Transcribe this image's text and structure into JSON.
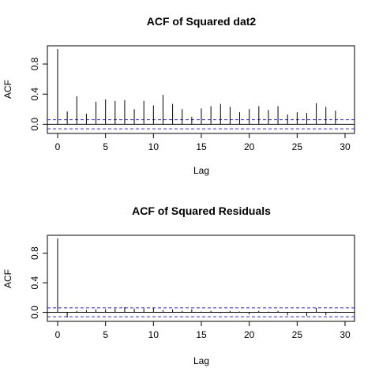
{
  "chart_data": [
    {
      "type": "bar",
      "title": "ACF of Squared dat2",
      "xlabel": "Lag",
      "ylabel": "ACF",
      "xlim": [
        0,
        30
      ],
      "ylim": [
        -0.08,
        1.0
      ],
      "x_ticks": [
        "0",
        "5",
        "10",
        "15",
        "20",
        "25",
        "30"
      ],
      "y_ticks": [
        "0.0",
        "0.4",
        "0.8"
      ],
      "confidence_band": 0.06,
      "band_color": "#2a2ad8",
      "lags": [
        0,
        1,
        2,
        3,
        4,
        5,
        6,
        7,
        8,
        9,
        10,
        11,
        12,
        13,
        14,
        15,
        16,
        17,
        18,
        19,
        20,
        21,
        22,
        23,
        24,
        25,
        26,
        27,
        28,
        29,
        30
      ],
      "values": [
        1.0,
        0.17,
        0.37,
        0.14,
        0.3,
        0.33,
        0.31,
        0.32,
        0.2,
        0.31,
        0.25,
        0.39,
        0.27,
        0.2,
        0.1,
        0.21,
        0.24,
        0.27,
        0.23,
        0.16,
        0.2,
        0.24,
        0.19,
        0.24,
        0.13,
        0.16,
        0.15,
        0.28,
        0.23,
        0.18,
        0.0
      ]
    },
    {
      "type": "bar",
      "title": "ACF of Squared Residuals",
      "xlabel": "Lag",
      "ylabel": "ACF",
      "xlim": [
        0,
        30
      ],
      "ylim": [
        -0.08,
        1.0
      ],
      "x_ticks": [
        "0",
        "5",
        "10",
        "15",
        "20",
        "25",
        "30"
      ],
      "y_ticks": [
        "0.0",
        "0.4",
        "0.8"
      ],
      "confidence_band": 0.06,
      "band_color": "#2a2ad8",
      "lags": [
        0,
        1,
        2,
        3,
        4,
        5,
        6,
        7,
        8,
        9,
        10,
        11,
        12,
        13,
        14,
        15,
        16,
        17,
        18,
        19,
        20,
        21,
        22,
        23,
        24,
        25,
        26,
        27,
        28,
        29,
        30
      ],
      "values": [
        1.0,
        -0.07,
        0.02,
        0.03,
        0.04,
        0.04,
        0.05,
        0.07,
        0.05,
        0.05,
        0.06,
        0.03,
        0.04,
        0.02,
        0.04,
        0.01,
        0.02,
        -0.01,
        0.02,
        0.01,
        -0.03,
        0.02,
        0.01,
        0.02,
        -0.04,
        -0.01,
        -0.05,
        0.06,
        -0.04,
        0.01,
        0.0
      ]
    }
  ]
}
